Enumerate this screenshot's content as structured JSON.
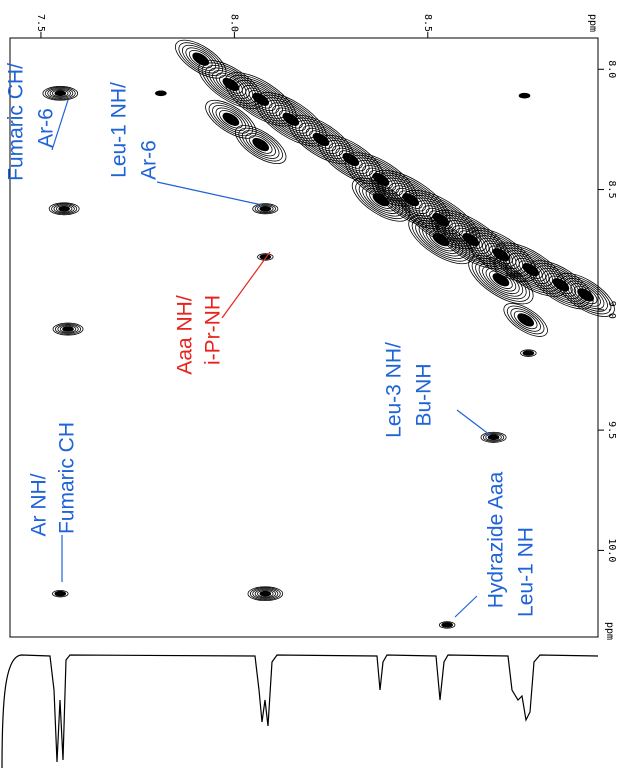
{
  "chart_data": {
    "type": "nmr2d",
    "xlabel": "ppm",
    "ylabel": "ppm",
    "xlim": [
      7.42,
      8.94
    ],
    "ylim": [
      7.87,
      10.36
    ],
    "xticks": [
      7.5,
      {
        "value": 8.0,
        "label": "8.0"
      },
      8.5
    ],
    "yticks": [
      {
        "value": 8.0,
        "label": "8.0"
      },
      8.5,
      {
        "value": 9.0,
        "label": "9.0"
      },
      9.5,
      {
        "value": 10.0,
        "label": "10.0"
      }
    ],
    "color": "#000000",
    "peaks": {
      "x": [
        7.55,
        7.56,
        7.57,
        7.55,
        8.08,
        8.08,
        8.08,
        8.67,
        8.55,
        8.76,
        7.81,
        8.75
      ],
      "y": [
        8.1,
        8.58,
        9.08,
        10.18,
        10.18,
        8.58,
        8.78,
        9.53,
        10.31,
        9.18,
        8.1,
        8.11
      ],
      "levels": [
        6,
        5,
        5,
        2,
        6,
        4,
        2,
        4,
        2,
        2,
        1,
        1
      ]
    },
    "diagonal": {
      "x": [
        7.913,
        7.991,
        8.068,
        8.146,
        8.224,
        8.301,
        8.379,
        8.456,
        8.534,
        8.611,
        8.689,
        8.766,
        8.844,
        8.908,
        7.991,
        8.068,
        8.379,
        8.534,
        8.689,
        8.753
      ],
      "y": [
        7.958,
        8.063,
        8.125,
        8.208,
        8.292,
        8.375,
        8.458,
        8.542,
        8.625,
        8.708,
        8.771,
        8.833,
        8.896,
        8.938,
        8.208,
        8.313,
        8.542,
        8.708,
        8.875,
        9.042
      ],
      "levels": [
        6,
        8,
        9,
        9,
        8,
        8,
        9,
        10,
        10,
        10,
        9,
        9,
        8,
        7,
        6,
        6,
        7,
        8,
        8,
        5
      ]
    },
    "annotations": [
      {
        "lines": [
          "Fumaric CH/",
          "Ar-6"
        ],
        "color": "#1e63d8"
      },
      {
        "lines": [
          "Leu-1 NH/",
          "Ar-6"
        ],
        "color": "#1e63d8"
      },
      {
        "lines": [
          "Aaa NH/",
          "i-Pr-NH"
        ],
        "color": "#e8231c"
      },
      {
        "lines": [
          "Leu-3 NH/",
          "Bu-NH"
        ],
        "color": "#1e63d8"
      },
      {
        "lines": [
          "Ar NH/",
          "Fumaric CH"
        ],
        "color": "#1e63d8"
      },
      {
        "lines": [
          "Hydrazide Aaa",
          "Leu-1 NH"
        ],
        "color": "#1e63d8"
      }
    ]
  }
}
